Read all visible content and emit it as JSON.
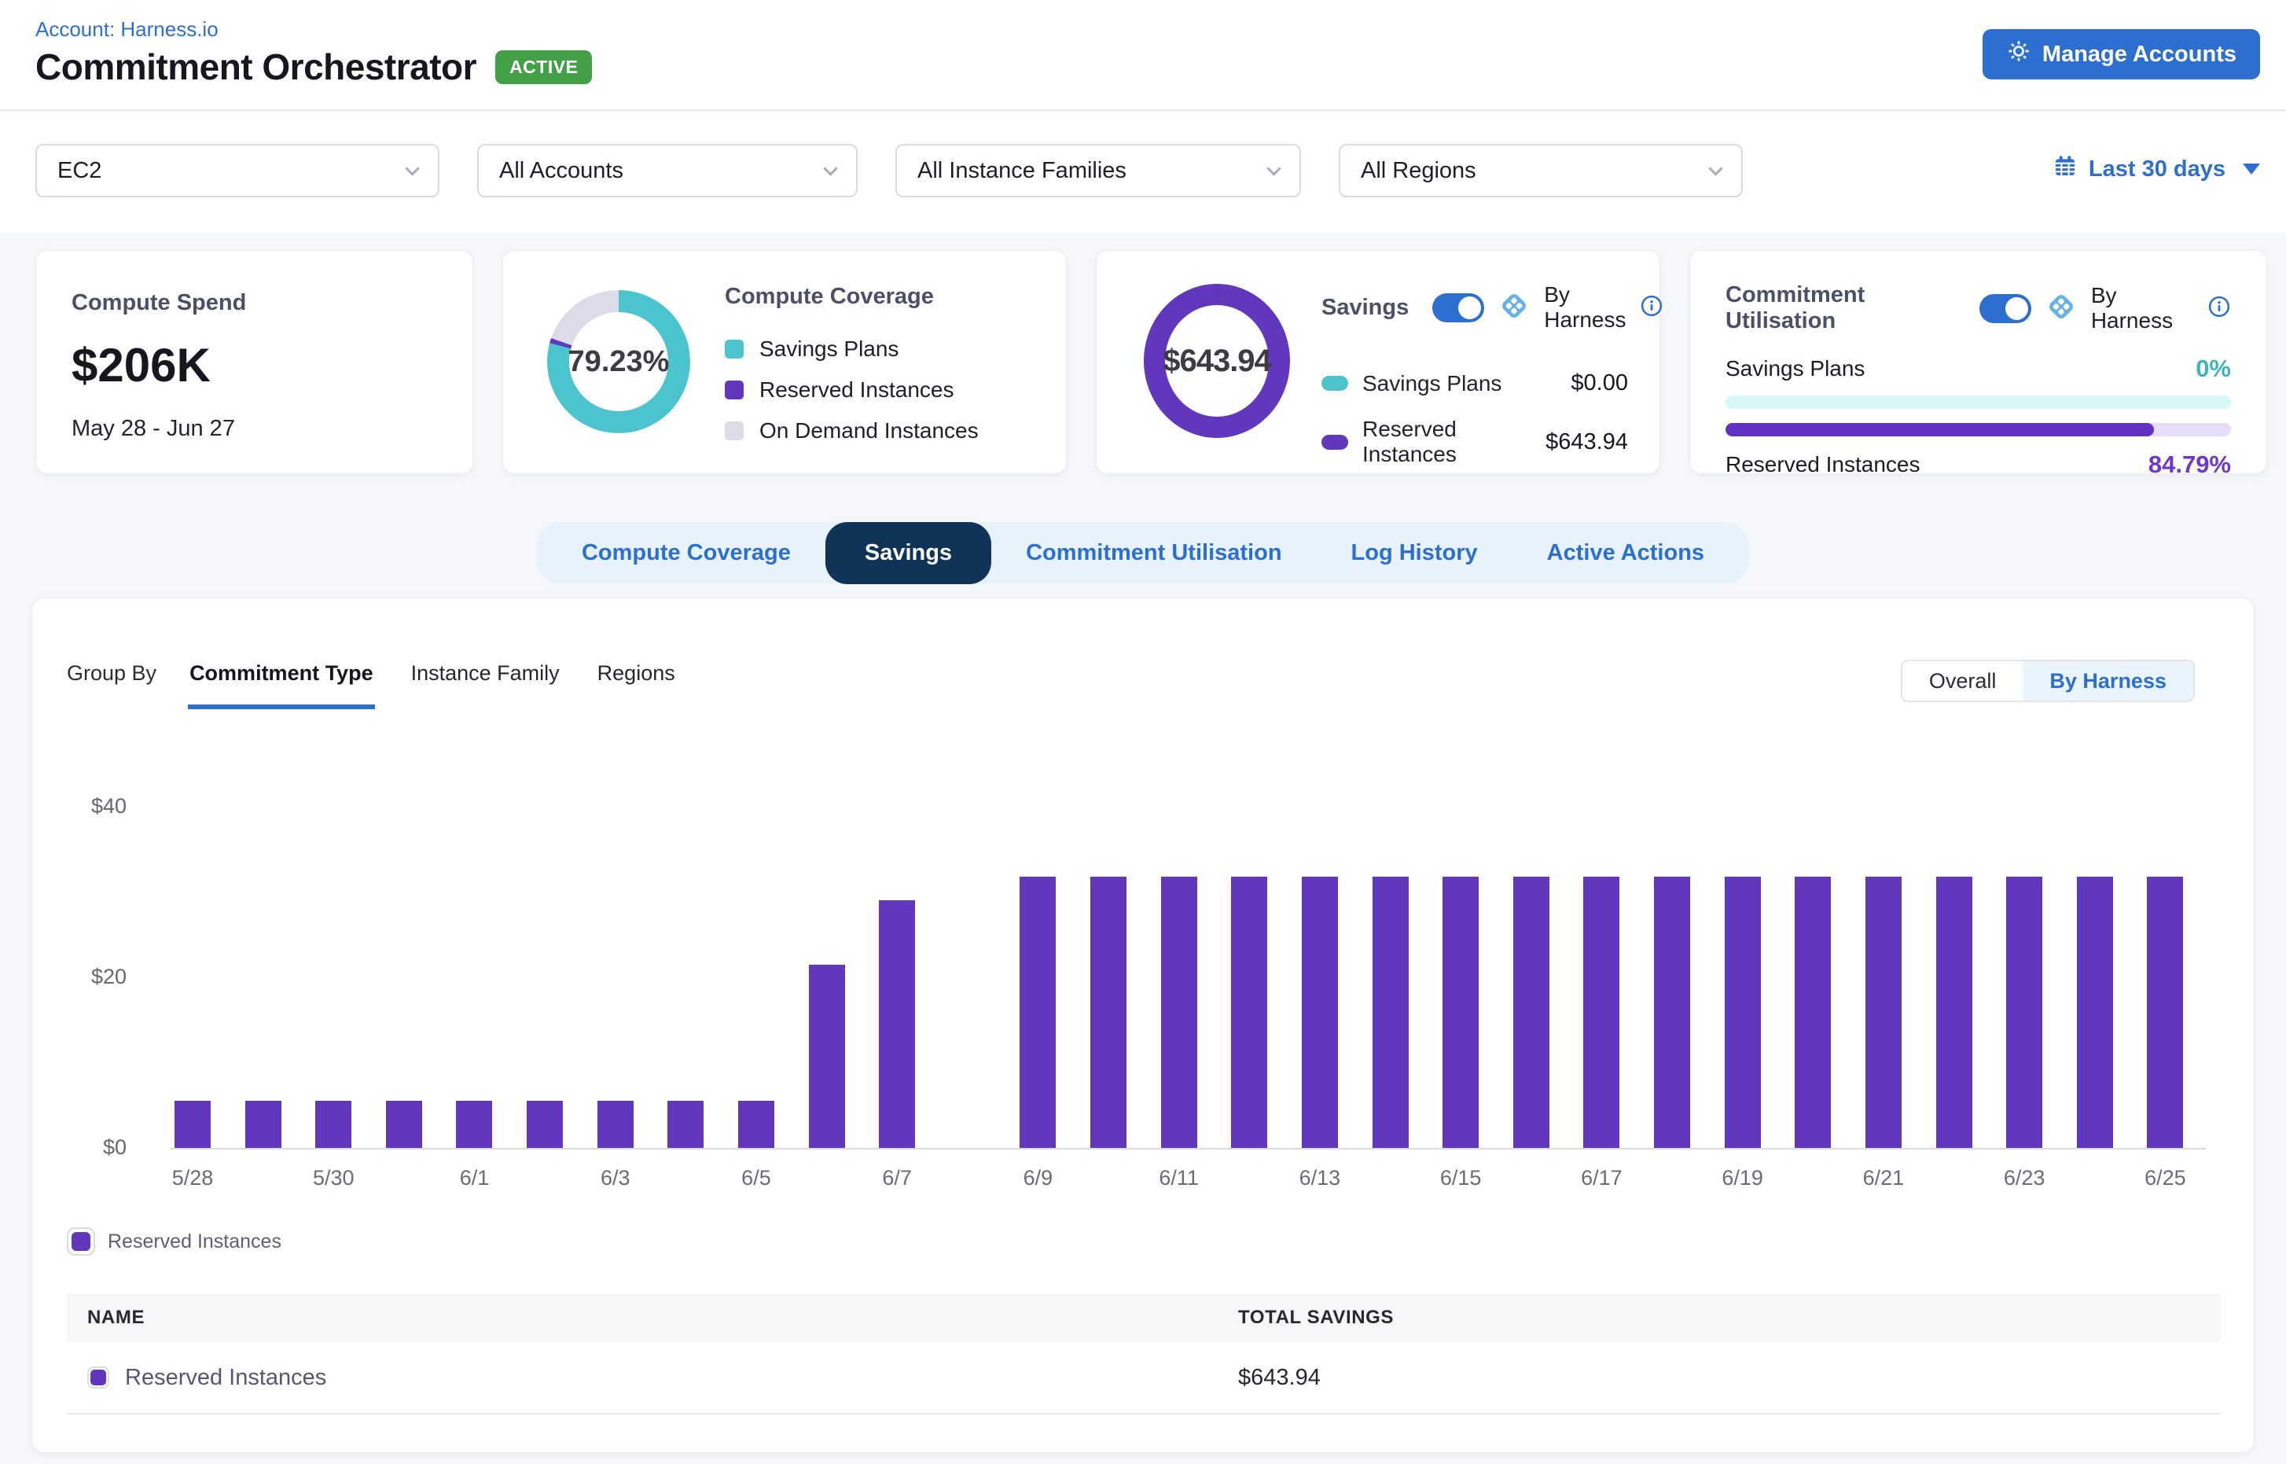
{
  "header": {
    "account_link": "Account: Harness.io",
    "title": "Commitment Orchestrator",
    "status_badge": "ACTIVE",
    "manage_accounts": "Manage Accounts"
  },
  "filters": {
    "service": "EC2",
    "accounts": "All Accounts",
    "instance_families": "All Instance Families",
    "regions": "All Regions",
    "date_range": "Last 30 days"
  },
  "colors": {
    "accent_blue": "#2d6fd0",
    "active_green": "#43a047",
    "navy_active_tab": "#103457",
    "purple": "#6138bd",
    "teal": "#4cc4cd",
    "on_demand_gray": "#dcdce8",
    "teal_text": "#3fb3bf",
    "purple_text": "#7138c8"
  },
  "cards": {
    "compute_spend": {
      "title": "Compute Spend",
      "value": "$206K",
      "period": "May 28 - Jun 27"
    },
    "compute_coverage": {
      "title": "Compute Coverage",
      "percent": "79.23%",
      "segments": [
        {
          "label": "Savings Plans",
          "color": "#4cc4cd",
          "value": 79.23
        },
        {
          "label": "Reserved Instances",
          "color": "#6138bd",
          "value": 1.1
        },
        {
          "label": "On Demand Instances",
          "color": "#dcdce8",
          "value": 19.67
        }
      ]
    },
    "savings": {
      "title": "Savings",
      "by_harness_label": "By Harness",
      "total": "$643.94",
      "rows": [
        {
          "label": "Savings Plans",
          "value": "$0.00",
          "color": "#4cc4cd"
        },
        {
          "label": "Reserved Instances",
          "value": "$643.94",
          "color": "#6138bd"
        }
      ]
    },
    "commitment_utilisation": {
      "title": "Commitment Utilisation",
      "by_harness_label": "By Harness",
      "rows": [
        {
          "label": "Savings Plans",
          "percent": "0%",
          "fill": 0,
          "fill_color": "#4cc4cd",
          "text_color": "#3fb3bf"
        },
        {
          "label": "Reserved Instances",
          "percent": "84.79%",
          "fill": 84.79,
          "fill_color": "#6131c1",
          "text_color": "#7138c8"
        }
      ]
    }
  },
  "tabs": {
    "items": [
      "Compute Coverage",
      "Savings",
      "Commitment Utilisation",
      "Log History",
      "Active Actions"
    ],
    "active": "Savings"
  },
  "group_by": {
    "label": "Group By",
    "options": [
      "Commitment Type",
      "Instance Family",
      "Regions"
    ],
    "active": "Commitment Type"
  },
  "view_toggle": {
    "options": [
      "Overall",
      "By Harness"
    ],
    "active": "By Harness"
  },
  "chart_data": {
    "type": "bar",
    "title": "",
    "xlabel": "",
    "ylabel": "",
    "ylim": [
      0,
      40
    ],
    "grid": false,
    "legend_position": "bottom-left",
    "yticks": [
      {
        "label": "$0",
        "value": 0
      },
      {
        "label": "$20",
        "value": 20
      },
      {
        "label": "$40",
        "value": 40
      }
    ],
    "x": [
      "5/28",
      "5/29",
      "5/30",
      "5/31",
      "6/1",
      "6/2",
      "6/3",
      "6/4",
      "6/5",
      "6/6",
      "6/7",
      "6/8",
      "6/9",
      "6/10",
      "6/11",
      "6/12",
      "6/13",
      "6/14",
      "6/15",
      "6/16",
      "6/17",
      "6/18",
      "6/19",
      "6/20",
      "6/21",
      "6/22",
      "6/23",
      "6/24",
      "6/25"
    ],
    "xticks_shown": [
      "5/28",
      "5/30",
      "6/1",
      "6/3",
      "6/5",
      "6/7",
      "6/9",
      "6/11",
      "6/13",
      "6/15",
      "6/17",
      "6/19",
      "6/21",
      "6/23",
      "6/25"
    ],
    "series": [
      {
        "name": "Reserved Instances",
        "color": "#6138bd",
        "values": [
          5.5,
          5.5,
          5.5,
          5.5,
          5.5,
          5.5,
          5.5,
          5.5,
          5.5,
          21.5,
          29,
          0,
          31.8,
          31.8,
          31.8,
          31.8,
          31.8,
          31.8,
          31.8,
          31.8,
          31.8,
          31.8,
          31.8,
          31.8,
          31.8,
          31.8,
          31.8,
          31.8,
          31.8
        ]
      }
    ]
  },
  "legend": {
    "label": "Reserved Instances",
    "color": "#6138bd"
  },
  "table": {
    "columns": [
      "NAME",
      "TOTAL SAVINGS"
    ],
    "rows": [
      {
        "name": "Reserved Instances",
        "color": "#6138bd",
        "total_savings": "$643.94"
      }
    ]
  }
}
